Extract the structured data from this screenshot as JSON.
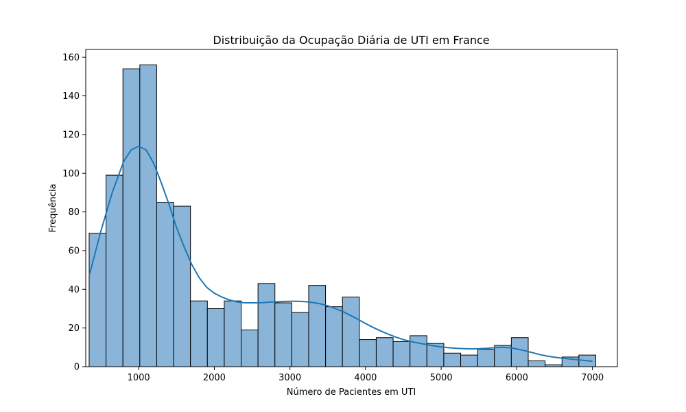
{
  "chart_data": {
    "type": "bar",
    "title": "Distribuição da Ocupação Diária de UTI em France",
    "xlabel": "Número de Pacientes em UTI",
    "ylabel": "Frequência",
    "xlim": [
      300,
      7330
    ],
    "ylim": [
      0,
      164
    ],
    "xticks": [
      1000,
      2000,
      3000,
      4000,
      5000,
      6000,
      7000
    ],
    "yticks": [
      0,
      20,
      40,
      60,
      80,
      100,
      120,
      140,
      160
    ],
    "bin_start": 345,
    "bin_width": 223.3,
    "counts": [
      69,
      99,
      154,
      156,
      85,
      83,
      34,
      30,
      34,
      19,
      43,
      33,
      28,
      42,
      31,
      36,
      14,
      15,
      13,
      16,
      12,
      7,
      6,
      9,
      11,
      15,
      3,
      1,
      5,
      6
    ],
    "bar_color": "#8ab5d9",
    "kde_color": "#1f77b4",
    "kde": {
      "x": [
        345,
        500,
        650,
        800,
        900,
        1000,
        1100,
        1200,
        1300,
        1400,
        1500,
        1600,
        1700,
        1800,
        1900,
        2000,
        2100,
        2200,
        2300,
        2400,
        2500,
        2600,
        2700,
        2800,
        2900,
        3000,
        3100,
        3200,
        3300,
        3400,
        3500,
        3600,
        3700,
        3800,
        3900,
        4000,
        4100,
        4200,
        4300,
        4400,
        4500,
        4600,
        4700,
        4800,
        4900,
        5000,
        5100,
        5200,
        5300,
        5400,
        5500,
        5600,
        5700,
        5800,
        5900,
        6000,
        6100,
        6200,
        6300,
        6400,
        6500,
        6600,
        6700,
        6800,
        6900,
        7000
      ],
      "y": [
        47,
        70,
        90,
        106,
        112,
        114,
        112,
        105,
        95,
        84,
        72,
        62,
        53,
        46,
        41,
        38,
        36,
        34.5,
        33.5,
        33,
        33,
        33,
        33.3,
        33.5,
        33.7,
        33.8,
        33.8,
        33.6,
        33.2,
        32.5,
        31.5,
        30,
        28.5,
        26.5,
        24.5,
        22.3,
        20.3,
        18.5,
        16.8,
        15.3,
        14,
        13,
        12.2,
        11.5,
        10.8,
        10.2,
        9.8,
        9.5,
        9.3,
        9.2,
        9.3,
        9.5,
        9.8,
        10,
        9.8,
        9.2,
        8.3,
        7.3,
        6.3,
        5.5,
        4.9,
        4.4,
        4,
        3.6,
        3.2,
        2.8
      ]
    }
  }
}
